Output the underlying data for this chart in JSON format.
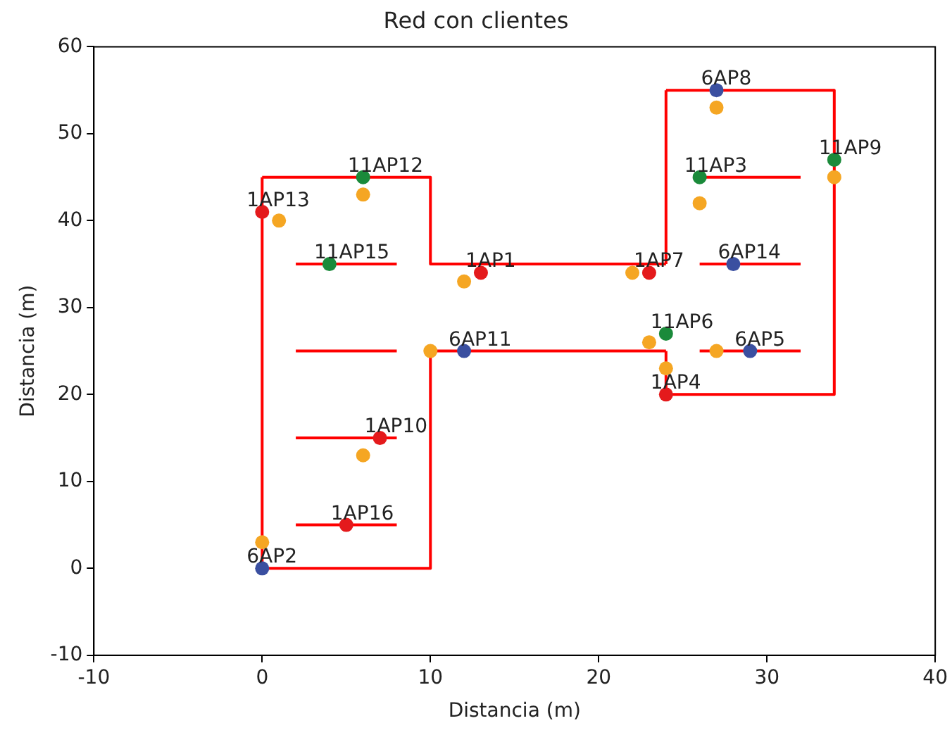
{
  "chart_data": {
    "type": "scatter",
    "title": "Red con clientes",
    "xlabel": "Distancia (m)",
    "ylabel": "Distancia (m)",
    "xlim": [
      -10,
      40
    ],
    "xticks": [
      -10,
      0,
      10,
      20,
      30,
      40
    ],
    "ylim": [
      -10,
      60
    ],
    "yticks": [
      -10,
      0,
      10,
      20,
      30,
      40,
      50,
      60
    ],
    "grid": false,
    "legend": false,
    "marker": "circle",
    "series": [
      {
        "type": "line",
        "marker": "none",
        "color": "#ff0000",
        "x": [
          0,
          0
        ],
        "values": [
          0,
          45
        ]
      },
      {
        "type": "line",
        "marker": "none",
        "color": "#ff0000",
        "x": [
          0,
          10
        ],
        "values": [
          45,
          45
        ]
      },
      {
        "type": "line",
        "marker": "none",
        "color": "#ff0000",
        "x": [
          10,
          10
        ],
        "values": [
          45,
          35
        ]
      },
      {
        "type": "line",
        "marker": "none",
        "color": "#ff0000",
        "x": [
          10,
          24
        ],
        "values": [
          35,
          35
        ]
      },
      {
        "type": "line",
        "marker": "none",
        "color": "#ff0000",
        "x": [
          24,
          24
        ],
        "values": [
          35,
          55
        ]
      },
      {
        "type": "line",
        "marker": "none",
        "color": "#ff0000",
        "x": [
          24,
          34
        ],
        "values": [
          55,
          55
        ]
      },
      {
        "type": "line",
        "marker": "none",
        "color": "#ff0000",
        "x": [
          34,
          34
        ],
        "values": [
          55,
          20
        ]
      },
      {
        "type": "line",
        "marker": "none",
        "color": "#ff0000",
        "x": [
          24,
          34
        ],
        "values": [
          20,
          20
        ]
      },
      {
        "type": "line",
        "marker": "none",
        "color": "#ff0000",
        "x": [
          24,
          24
        ],
        "values": [
          20,
          25
        ]
      },
      {
        "type": "line",
        "marker": "none",
        "color": "#ff0000",
        "x": [
          10,
          24
        ],
        "values": [
          25,
          25
        ]
      },
      {
        "type": "line",
        "marker": "none",
        "color": "#ff0000",
        "x": [
          10,
          10
        ],
        "values": [
          25,
          0
        ]
      },
      {
        "type": "line",
        "marker": "none",
        "color": "#ff0000",
        "x": [
          0,
          10
        ],
        "values": [
          0,
          0
        ]
      },
      {
        "type": "line",
        "marker": "none",
        "color": "#ff0000",
        "x": [
          2,
          8
        ],
        "values": [
          35,
          35
        ]
      },
      {
        "type": "line",
        "marker": "none",
        "color": "#ff0000",
        "x": [
          2,
          8
        ],
        "values": [
          25,
          25
        ]
      },
      {
        "type": "line",
        "marker": "none",
        "color": "#ff0000",
        "x": [
          2,
          8
        ],
        "values": [
          15,
          15
        ]
      },
      {
        "type": "line",
        "marker": "none",
        "color": "#ff0000",
        "x": [
          2,
          8
        ],
        "values": [
          5,
          5
        ]
      },
      {
        "type": "line",
        "marker": "none",
        "color": "#ff0000",
        "x": [
          26,
          32
        ],
        "values": [
          45,
          45
        ]
      },
      {
        "type": "line",
        "marker": "none",
        "color": "#ff0000",
        "x": [
          26,
          32
        ],
        "values": [
          35,
          35
        ]
      },
      {
        "type": "line",
        "marker": "none",
        "color": "#ff0000",
        "x": [
          26,
          32
        ],
        "values": [
          25,
          25
        ]
      },
      {
        "type": "scatter",
        "color": "#f5a623",
        "x": [
          1,
          6,
          6,
          0,
          10,
          12,
          22,
          23,
          24,
          27,
          26,
          27,
          34
        ],
        "values": [
          40,
          43,
          13,
          3,
          25,
          33,
          34,
          26,
          23,
          25,
          42,
          53,
          45
        ]
      },
      {
        "type": "scatter",
        "color": "#e41a1c",
        "x": [
          0,
          7,
          5,
          13,
          23,
          24
        ],
        "values": [
          41,
          15,
          5,
          34,
          34,
          20
        ]
      },
      {
        "type": "scatter",
        "color": "#1a8a3a",
        "x": [
          6,
          4,
          24,
          26,
          34
        ],
        "values": [
          45,
          35,
          27,
          45,
          47
        ]
      },
      {
        "type": "scatter",
        "color": "#3a4fa0",
        "x": [
          0,
          12,
          29,
          28,
          27
        ],
        "values": [
          0,
          25,
          25,
          35,
          55
        ]
      }
    ],
    "annotations": [
      {
        "text": "1AP13",
        "x": 0,
        "y": 41
      },
      {
        "text": "11AP12",
        "x": 6,
        "y": 45
      },
      {
        "text": "11AP15",
        "x": 4,
        "y": 35
      },
      {
        "text": "1AP10",
        "x": 7,
        "y": 15
      },
      {
        "text": "1AP16",
        "x": 5,
        "y": 5
      },
      {
        "text": "6AP2",
        "x": 0,
        "y": 0
      },
      {
        "text": "1AP1",
        "x": 13,
        "y": 34
      },
      {
        "text": "6AP11",
        "x": 12,
        "y": 25
      },
      {
        "text": "1AP7",
        "x": 23,
        "y": 34
      },
      {
        "text": "11AP6",
        "x": 24,
        "y": 27
      },
      {
        "text": "1AP4",
        "x": 24,
        "y": 20
      },
      {
        "text": "6AP5",
        "x": 29,
        "y": 25
      },
      {
        "text": "6AP14",
        "x": 28,
        "y": 35
      },
      {
        "text": "11AP3",
        "x": 26,
        "y": 45
      },
      {
        "text": "6AP8",
        "x": 27,
        "y": 55
      },
      {
        "text": "11AP9",
        "x": 34,
        "y": 47
      }
    ]
  }
}
